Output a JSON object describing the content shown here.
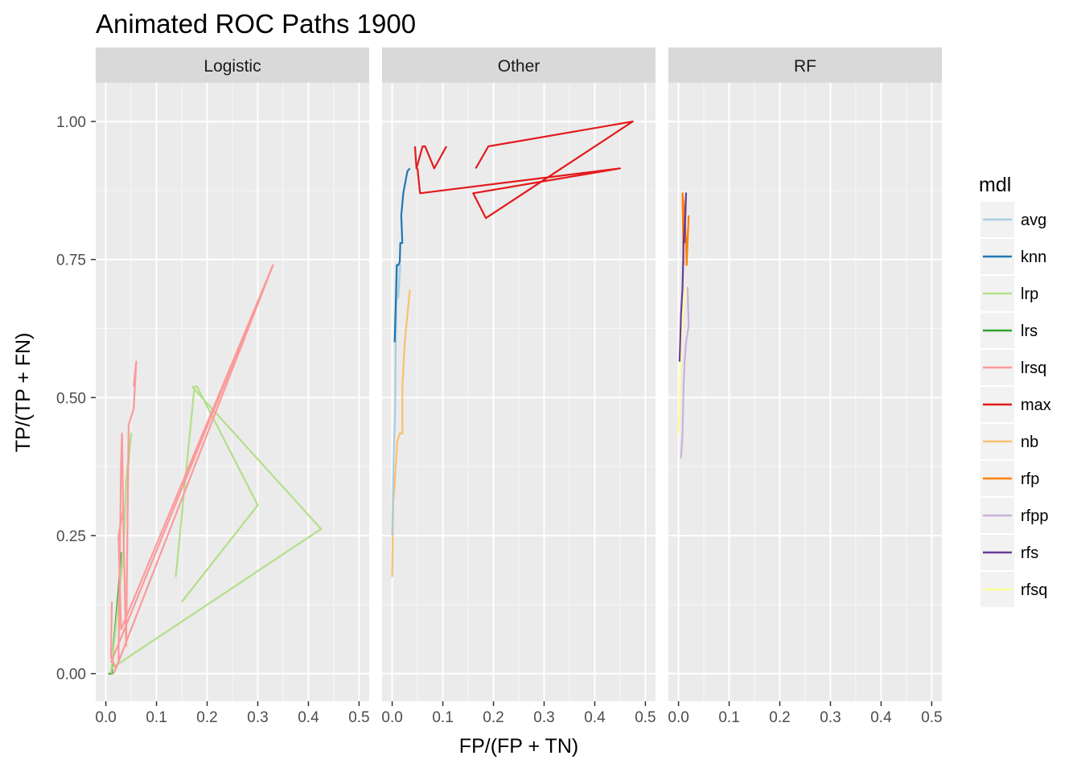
{
  "chart_data": {
    "type": "line",
    "title": "Animated ROC Paths 1900",
    "xlabel": "FP/(FP + TN)",
    "ylabel": "TP/(TP + FN)",
    "xlim": [
      -0.02,
      0.52
    ],
    "ylim": [
      -0.05,
      1.07
    ],
    "x_ticks": [
      0.0,
      0.1,
      0.2,
      0.3,
      0.4,
      0.5
    ],
    "x_tick_labels": [
      "0.0",
      "0.1",
      "0.2",
      "0.3",
      "0.4",
      "0.5"
    ],
    "y_ticks": [
      0.0,
      0.25,
      0.5,
      0.75,
      1.0
    ],
    "y_tick_labels": [
      "0.00",
      "0.25",
      "0.50",
      "0.75",
      "1.00"
    ],
    "grid": true,
    "facets": [
      "Logistic",
      "Other",
      "RF"
    ],
    "legend": {
      "title": "mdl",
      "position": "right",
      "entries": [
        "avg",
        "knn",
        "lrp",
        "lrs",
        "lrsq",
        "max",
        "nb",
        "rfp",
        "rfpp",
        "rfs",
        "rfsq"
      ]
    },
    "colors": {
      "avg": "#a6cee3",
      "knn": "#1f78b4",
      "lrp": "#b2df8a",
      "lrs": "#33a02c",
      "lrsq": "#fb9a99",
      "max": "#e31a1c",
      "nb": "#fdbf6f",
      "rfp": "#ff7f00",
      "rfpp": "#cab2d6",
      "rfs": "#6a3d9a",
      "rfsq": "#ffff99"
    },
    "series": [
      {
        "name": "lrs",
        "facet": "Logistic",
        "points": [
          [
            0.005,
            0.0
          ],
          [
            0.012,
            0.0
          ],
          [
            0.015,
            0.05
          ],
          [
            0.02,
            0.1
          ],
          [
            0.025,
            0.15
          ],
          [
            0.03,
            0.22
          ]
        ]
      },
      {
        "name": "lrp",
        "facet": "Logistic",
        "points": [
          [
            0.01,
            0.0
          ],
          [
            0.035,
            0.22
          ],
          [
            0.04,
            0.35
          ],
          [
            0.05,
            0.435
          ],
          [
            0.045,
            0.38
          ]
        ]
      },
      {
        "name": "lrp",
        "facet": "Logistic",
        "points": [
          [
            0.138,
            0.175
          ],
          [
            0.175,
            0.52
          ],
          [
            0.18,
            0.52
          ],
          [
            0.3,
            0.305
          ],
          [
            0.15,
            0.13
          ]
        ]
      },
      {
        "name": "lrp",
        "facet": "Logistic",
        "points": [
          [
            0.012,
            0.01
          ],
          [
            0.425,
            0.262
          ],
          [
            0.17,
            0.52
          ]
        ]
      },
      {
        "name": "lrsq",
        "facet": "Logistic",
        "points": [
          [
            0.015,
            0.0
          ],
          [
            0.025,
            0.02
          ],
          [
            0.03,
            0.38
          ],
          [
            0.032,
            0.435
          ],
          [
            0.035,
            0.25
          ],
          [
            0.04,
            0.05
          ],
          [
            0.045,
            0.45
          ],
          [
            0.055,
            0.48
          ],
          [
            0.06,
            0.565
          ],
          [
            0.055,
            0.52
          ]
        ]
      },
      {
        "name": "lrsq",
        "facet": "Logistic",
        "points": [
          [
            0.012,
            0.13
          ],
          [
            0.01,
            0.03
          ],
          [
            0.02,
            0.01
          ],
          [
            0.33,
            0.74
          ],
          [
            0.03,
            0.08
          ],
          [
            0.025,
            0.25
          ],
          [
            0.035,
            0.3
          ]
        ]
      },
      {
        "name": "lrsq",
        "facet": "Logistic",
        "points": [
          [
            0.01,
            0.02
          ],
          [
            0.33,
            0.74
          ]
        ]
      },
      {
        "name": "nb",
        "facet": "Other",
        "points": [
          [
            0.0,
            0.175
          ],
          [
            0.002,
            0.31
          ],
          [
            0.004,
            0.33
          ],
          [
            0.01,
            0.42
          ],
          [
            0.015,
            0.435
          ],
          [
            0.02,
            0.435
          ],
          [
            0.02,
            0.52
          ],
          [
            0.025,
            0.6
          ],
          [
            0.03,
            0.65
          ],
          [
            0.035,
            0.695
          ]
        ]
      },
      {
        "name": "avg",
        "facet": "Other",
        "points": [
          [
            0.0,
            0.25
          ],
          [
            0.003,
            0.4
          ],
          [
            0.006,
            0.48
          ],
          [
            0.007,
            0.6
          ],
          [
            0.01,
            0.74
          ],
          [
            0.016,
            0.74
          ],
          [
            0.012,
            0.68
          ]
        ]
      },
      {
        "name": "knn",
        "facet": "Other",
        "points": [
          [
            0.005,
            0.6
          ],
          [
            0.007,
            0.67
          ],
          [
            0.009,
            0.74
          ],
          [
            0.012,
            0.74
          ],
          [
            0.015,
            0.745
          ],
          [
            0.016,
            0.78
          ],
          [
            0.02,
            0.78
          ],
          [
            0.018,
            0.83
          ],
          [
            0.022,
            0.87
          ],
          [
            0.03,
            0.91
          ],
          [
            0.035,
            0.915
          ]
        ]
      },
      {
        "name": "max",
        "facet": "Other",
        "points": [
          [
            0.045,
            0.955
          ],
          [
            0.048,
            0.915
          ],
          [
            0.06,
            0.955
          ],
          [
            0.065,
            0.955
          ],
          [
            0.083,
            0.915
          ],
          [
            0.107,
            0.955
          ]
        ]
      },
      {
        "name": "max",
        "facet": "Other",
        "points": [
          [
            0.05,
            0.915
          ],
          [
            0.055,
            0.87
          ],
          [
            0.45,
            0.915
          ],
          [
            0.16,
            0.87
          ],
          [
            0.185,
            0.825
          ],
          [
            0.475,
            1.0
          ],
          [
            0.19,
            0.955
          ],
          [
            0.165,
            0.915
          ]
        ]
      },
      {
        "name": "rfsq",
        "facet": "RF",
        "points": [
          [
            0.0,
            0.435
          ],
          [
            0.002,
            0.52
          ],
          [
            0.004,
            0.565
          ],
          [
            0.005,
            0.6
          ],
          [
            0.008,
            0.65
          ],
          [
            0.012,
            0.68
          ],
          [
            0.015,
            0.7
          ]
        ]
      },
      {
        "name": "rfpp",
        "facet": "RF",
        "points": [
          [
            0.005,
            0.39
          ],
          [
            0.008,
            0.435
          ],
          [
            0.01,
            0.52
          ],
          [
            0.012,
            0.565
          ],
          [
            0.015,
            0.6
          ],
          [
            0.02,
            0.63
          ],
          [
            0.018,
            0.7
          ]
        ]
      },
      {
        "name": "rfp",
        "facet": "RF",
        "points": [
          [
            0.01,
            0.74
          ],
          [
            0.008,
            0.87
          ],
          [
            0.012,
            0.83
          ],
          [
            0.015,
            0.78
          ],
          [
            0.016,
            0.74
          ],
          [
            0.02,
            0.83
          ]
        ]
      },
      {
        "name": "rfs",
        "facet": "RF",
        "points": [
          [
            0.002,
            0.565
          ],
          [
            0.005,
            0.65
          ],
          [
            0.008,
            0.7
          ],
          [
            0.01,
            0.78
          ],
          [
            0.013,
            0.83
          ],
          [
            0.015,
            0.87
          ],
          [
            0.012,
            0.78
          ]
        ]
      }
    ]
  }
}
